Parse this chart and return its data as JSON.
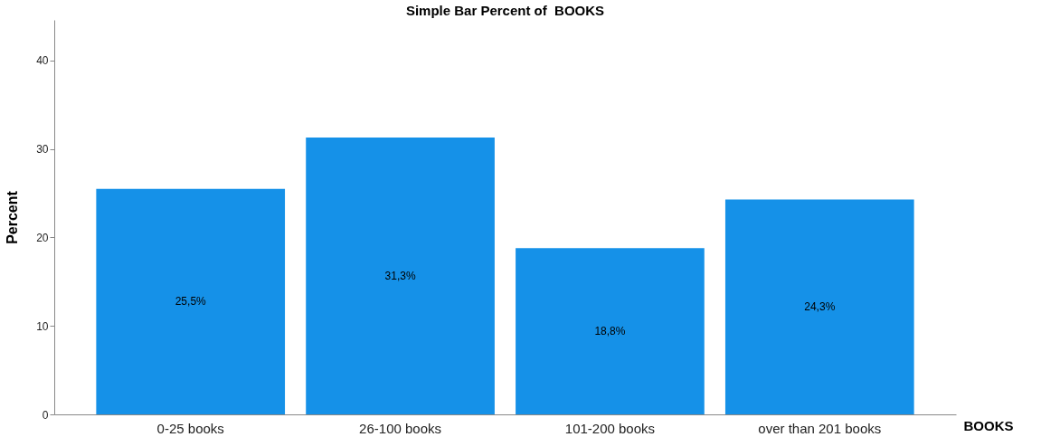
{
  "chart_data": {
    "type": "bar",
    "title": "Simple Bar Percent of  BOOKS",
    "xlabel": "BOOKS",
    "ylabel": "Percent",
    "categories": [
      "0-25 books",
      "26-100 books",
      "101-200 books",
      "over than 201 books"
    ],
    "values": [
      25.5,
      31.3,
      18.8,
      24.3
    ],
    "value_labels": [
      "25,5%",
      "31,3%",
      "18,8%",
      "24,3%"
    ],
    "color": "#1591e8",
    "ylim": [
      0,
      44.6
    ],
    "yticks": [
      0,
      10,
      20,
      30,
      40
    ],
    "grid": false
  }
}
